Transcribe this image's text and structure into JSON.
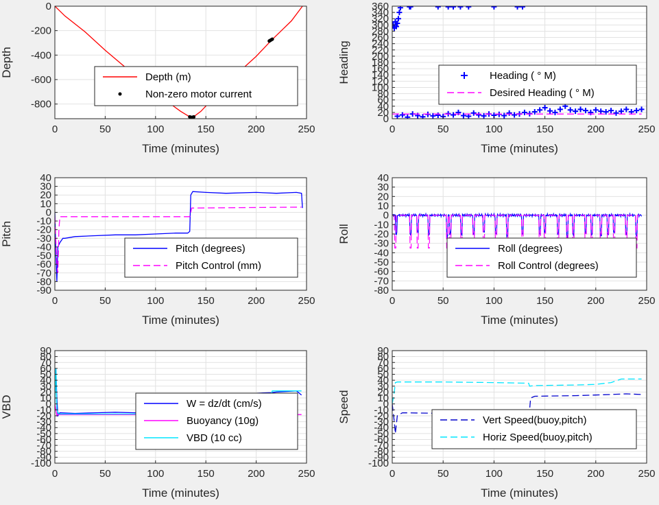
{
  "chart_data": [
    {
      "id": "depth",
      "type": "line",
      "xlabel": "Time (minutes)",
      "ylabel": "Depth",
      "xlim": [
        0,
        250
      ],
      "ylim": [
        -920,
        0
      ],
      "xticks": [
        0,
        50,
        100,
        150,
        200,
        250
      ],
      "yticks": [
        0,
        -200,
        -400,
        -600,
        -800
      ],
      "grid": true,
      "legend": "center",
      "series": [
        {
          "name": "Depth (m)",
          "style": "line",
          "color": "#ff0000",
          "x": [
            0,
            10,
            30,
            50,
            70,
            90,
            110,
            125,
            133,
            137,
            145,
            160,
            180,
            200,
            215,
            225,
            235,
            246
          ],
          "y": [
            0,
            -80,
            -210,
            -360,
            -500,
            -640,
            -770,
            -860,
            -900,
            -910,
            -860,
            -730,
            -560,
            -410,
            -280,
            -200,
            -120,
            0
          ]
        },
        {
          "name": "Non-zero motor current",
          "style": "dots",
          "color": "#000000",
          "x": [
            134,
            135,
            136,
            137,
            138,
            213,
            214,
            215,
            216
          ],
          "y": [
            -905,
            -908,
            -910,
            -908,
            -905,
            -285,
            -280,
            -275,
            -270
          ]
        }
      ]
    },
    {
      "id": "heading",
      "type": "scatter",
      "xlabel": "Time (minutes)",
      "ylabel": "Heading",
      "xlim": [
        0,
        250
      ],
      "ylim": [
        0,
        360
      ],
      "xticks": [
        0,
        50,
        100,
        150,
        200,
        250
      ],
      "yticks": [
        0,
        20,
        40,
        60,
        80,
        100,
        120,
        140,
        160,
        180,
        200,
        220,
        240,
        260,
        280,
        300,
        320,
        340,
        360
      ],
      "grid": true,
      "legend": "center-right",
      "series": [
        {
          "name": "Heading (  ° M)",
          "style": "plus",
          "color": "#0000ff",
          "x": [
            1,
            2,
            3,
            4,
            5,
            6,
            7,
            8,
            17,
            18,
            45,
            55,
            60,
            67,
            75,
            100,
            123,
            128,
            5,
            10,
            15,
            20,
            25,
            30,
            35,
            40,
            45,
            50,
            55,
            60,
            65,
            70,
            75,
            80,
            85,
            90,
            95,
            100,
            105,
            110,
            115,
            120,
            125,
            130,
            135,
            140,
            145,
            150,
            155,
            160,
            165,
            170,
            175,
            180,
            185,
            190,
            195,
            200,
            205,
            210,
            215,
            220,
            225,
            230,
            235,
            240,
            245
          ],
          "y": [
            300,
            290,
            310,
            295,
            305,
            320,
            340,
            355,
            358,
            358,
            358,
            358,
            358,
            358,
            358,
            358,
            358,
            358,
            8,
            12,
            5,
            15,
            10,
            6,
            14,
            9,
            11,
            7,
            16,
            12,
            20,
            10,
            8,
            18,
            12,
            9,
            15,
            11,
            14,
            10,
            18,
            12,
            15,
            20,
            16,
            22,
            28,
            35,
            25,
            20,
            30,
            40,
            28,
            24,
            30,
            26,
            20,
            28,
            24,
            22,
            26,
            18,
            24,
            30,
            22,
            26,
            30
          ]
        },
        {
          "name": "Desired Heading (   ° M)",
          "style": "dashed",
          "color": "#ff00ff",
          "x": [
            0,
            245
          ],
          "y": [
            15,
            15
          ]
        }
      ]
    },
    {
      "id": "pitch",
      "type": "line",
      "xlabel": "Time (minutes)",
      "ylabel": "Pitch",
      "xlim": [
        0,
        250
      ],
      "ylim": [
        -90,
        40
      ],
      "xticks": [
        0,
        50,
        100,
        150,
        200,
        250
      ],
      "yticks": [
        40,
        30,
        20,
        10,
        0,
        -10,
        -20,
        -30,
        -40,
        -50,
        -60,
        -70,
        -80,
        -90
      ],
      "grid": true,
      "legend": "center-right",
      "series": [
        {
          "name": "Pitch (degrees)",
          "style": "line",
          "color": "#0000ff",
          "x": [
            0,
            1,
            2,
            3,
            5,
            8,
            10,
            20,
            40,
            60,
            80,
            100,
            120,
            132,
            134,
            135,
            137,
            150,
            170,
            200,
            220,
            240,
            245,
            246
          ],
          "y": [
            0,
            -50,
            -80,
            -40,
            -35,
            -30,
            -30,
            -28,
            -27,
            -26,
            -26,
            -25,
            -24,
            -24,
            -22,
            20,
            24,
            23,
            22,
            23,
            22,
            23,
            22,
            5
          ]
        },
        {
          "name": "Pitch Control (mm)",
          "style": "dashed",
          "color": "#ff00ff",
          "x": [
            0,
            2,
            3,
            4,
            5,
            134,
            135,
            136,
            245
          ],
          "y": [
            -5,
            -60,
            -70,
            -20,
            -5,
            -5,
            0,
            5,
            6
          ]
        }
      ]
    },
    {
      "id": "roll",
      "type": "line",
      "xlabel": "Time (minutes)",
      "ylabel": "Roll",
      "xlim": [
        0,
        250
      ],
      "ylim": [
        -80,
        40
      ],
      "xticks": [
        0,
        50,
        100,
        150,
        200,
        250
      ],
      "yticks": [
        40,
        30,
        20,
        10,
        0,
        -10,
        -20,
        -30,
        -40,
        -50,
        -60,
        -70,
        -80
      ],
      "grid": true,
      "legend": "center-right",
      "series": [
        {
          "name": "Roll (degrees)",
          "style": "line",
          "color": "#0000ff",
          "spikes": [
            4,
            18,
            25,
            36,
            54,
            57,
            68,
            80,
            90,
            102,
            113,
            128,
            145,
            150,
            163,
            172,
            178,
            190,
            196,
            205,
            212,
            218,
            230,
            240
          ],
          "spike_depth": [
            -20,
            -20,
            -18,
            -20,
            -22,
            -20,
            -20,
            -20,
            -18,
            -20,
            -22,
            -20,
            -20,
            -18,
            -20,
            -22,
            -20,
            -18,
            -20,
            -22,
            -20,
            -18,
            -20,
            -22
          ],
          "baseline": 0,
          "xmax": 245
        },
        {
          "name": "Roll Control (degrees)",
          "style": "dashed",
          "color": "#ff00ff",
          "spikes": [
            3,
            18,
            25,
            36,
            54,
            57,
            68,
            80,
            90,
            102,
            113,
            128,
            145,
            150,
            163,
            172,
            178,
            190,
            196,
            205,
            212,
            218,
            230,
            240
          ],
          "spike_depth": [
            -35,
            -35,
            -35,
            -35,
            -35,
            -35,
            -35,
            -35,
            -35,
            -35,
            -35,
            -35,
            -35,
            -35,
            -35,
            -35,
            -35,
            -35,
            -35,
            -35,
            -35,
            -35,
            -35,
            -35
          ],
          "baseline": 0,
          "xmax": 245
        }
      ]
    },
    {
      "id": "vbd",
      "type": "line",
      "xlabel": "Time (minutes)",
      "ylabel": "VBD",
      "xlim": [
        0,
        250
      ],
      "ylim": [
        -100,
        90
      ],
      "xticks": [
        0,
        50,
        100,
        150,
        200,
        250
      ],
      "yticks": [
        90,
        80,
        70,
        60,
        50,
        40,
        30,
        20,
        10,
        0,
        -10,
        -20,
        -30,
        -40,
        -50,
        -60,
        -70,
        -80,
        -90,
        -100
      ],
      "grid": true,
      "legend": "center-right",
      "series": [
        {
          "name": "W = dz/dt (cm/s)",
          "style": "line",
          "color": "#0000ff",
          "x": [
            0,
            1,
            2,
            3,
            5,
            20,
            40,
            60,
            80,
            100,
            120,
            134,
            135,
            136,
            140,
            160,
            180,
            200,
            215,
            220,
            240,
            245
          ],
          "y": [
            0,
            60,
            10,
            -20,
            -15,
            -16,
            -15,
            -14,
            -15,
            -16,
            -15,
            -14,
            -10,
            15,
            16,
            17,
            18,
            18,
            19,
            20,
            22,
            15
          ]
        },
        {
          "name": "Buoyancy (10g)",
          "style": "line",
          "color": "#ff00ff",
          "x": [
            0,
            2,
            3,
            134,
            135,
            245
          ],
          "y": [
            0,
            -20,
            -18,
            -18,
            -18,
            -18
          ]
        },
        {
          "name": "VBD (10 cc)",
          "style": "line",
          "color": "#00e5ff",
          "x": [
            0,
            1,
            2,
            4,
            134,
            136,
            137,
            215,
            216,
            245
          ],
          "y": [
            0,
            60,
            -10,
            -17,
            -17,
            -10,
            17,
            17,
            22,
            22
          ]
        }
      ]
    },
    {
      "id": "speed",
      "type": "line",
      "xlabel": "Time (minutes)",
      "ylabel": "Speed",
      "xlim": [
        0,
        250
      ],
      "ylim": [
        -100,
        90
      ],
      "xticks": [
        0,
        50,
        100,
        150,
        200,
        250
      ],
      "yticks": [
        90,
        80,
        70,
        60,
        50,
        40,
        30,
        20,
        10,
        0,
        -10,
        -20,
        -30,
        -40,
        -50,
        -60,
        -70,
        -80,
        -90,
        -100
      ],
      "grid": true,
      "legend": "center-right",
      "series": [
        {
          "name": "Vert Speed(buoy,pitch)",
          "style": "dashed",
          "color": "#0000cc",
          "x": [
            0,
            2,
            3,
            5,
            10,
            50,
            100,
            134,
            135,
            136,
            140,
            180,
            200,
            215,
            230,
            245
          ],
          "y": [
            0,
            -30,
            -50,
            -20,
            -15,
            -16,
            -15,
            -15,
            -10,
            10,
            13,
            14,
            15,
            16,
            17,
            16
          ]
        },
        {
          "name": "Horiz Speed(buoy,pitch)",
          "style": "dashed",
          "color": "#00e5ff",
          "x": [
            0,
            2,
            3,
            5,
            50,
            100,
            134,
            135,
            140,
            180,
            200,
            215,
            225,
            245
          ],
          "y": [
            0,
            20,
            36,
            37,
            37,
            36,
            35,
            30,
            31,
            32,
            33,
            36,
            42,
            42
          ]
        }
      ]
    }
  ]
}
